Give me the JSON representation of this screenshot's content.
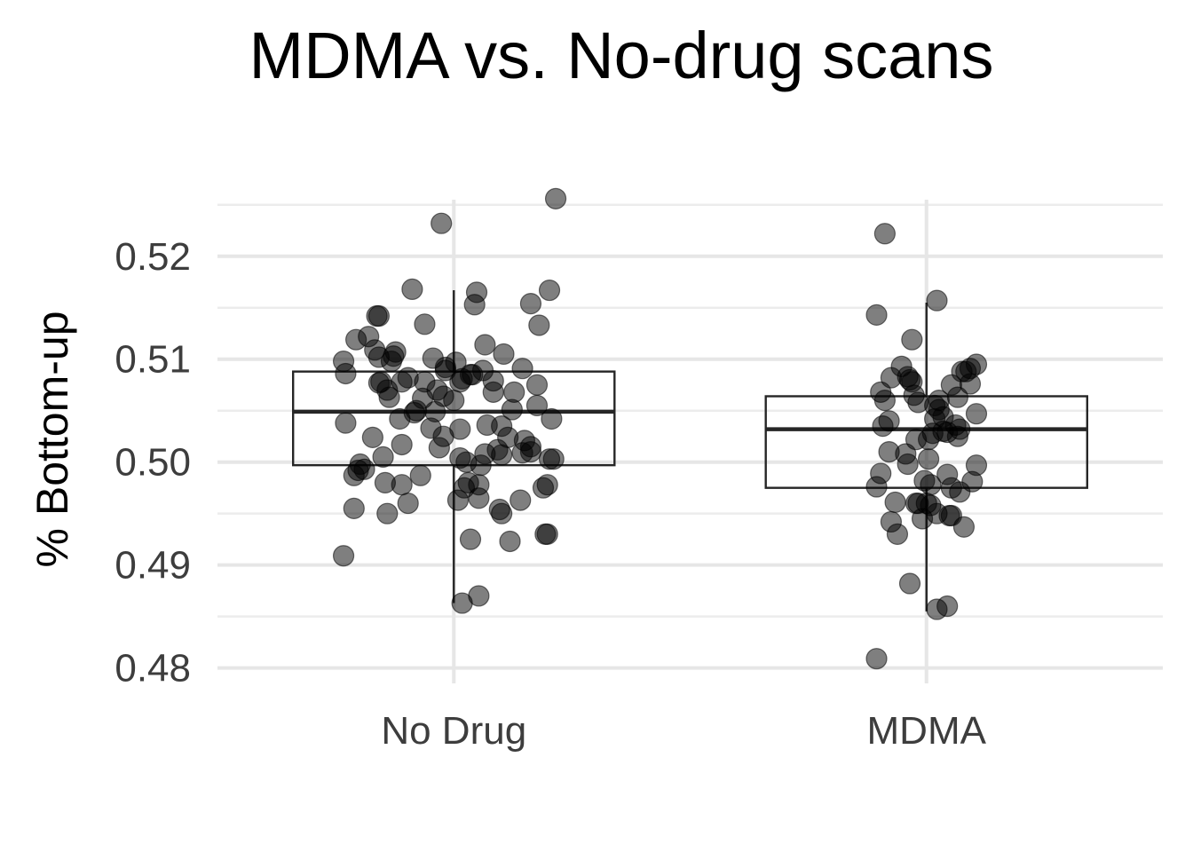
{
  "chart_data": {
    "type": "box",
    "title": "MDMA vs. No-drug scans",
    "xlabel": "",
    "ylabel": "% Bottom-up",
    "categories": [
      "No Drug",
      "MDMA"
    ],
    "ylim": [
      0.4785,
      0.5255
    ],
    "yticks": [
      0.48,
      0.49,
      0.5,
      0.51,
      0.52
    ],
    "ytick_labels": [
      "0.48",
      "0.49",
      "0.50",
      "0.51",
      "0.52"
    ],
    "grid": true,
    "legend": "none",
    "boxes": [
      {
        "name": "No Drug",
        "min": 0.4863,
        "q1": 0.4997,
        "median": 0.5049,
        "q3": 0.5088,
        "max": 0.5167
      },
      {
        "name": "MDMA",
        "min": 0.4855,
        "q1": 0.4975,
        "median": 0.5032,
        "q3": 0.5064,
        "max": 0.5155
      }
    ],
    "points": [
      {
        "group": "No Drug",
        "offsets": [
          0.49,
          -0.06,
          -0.53,
          0.04,
          0.12,
          0.45,
          0.43,
          0.32,
          0.22,
          0.27,
          0.23,
          0.46,
          0.34,
          -0.47,
          -0.37,
          -0.36,
          -0.3,
          -0.1,
          -0.04,
          0.08,
          0.14,
          -0.14,
          -0.35,
          -0.31,
          0.16,
          0.26,
          -0.19,
          -0.52,
          -0.26,
          -0.11,
          0.33,
          0.4,
          -0.05,
          0.01,
          0.03,
          -0.04,
          0.1,
          0.37,
          0.46,
          -0.53,
          -0.38,
          -0.28,
          -0.22,
          -0.41,
          0.15,
          0.24,
          0.41,
          -0.2,
          -0.14,
          -0.36,
          -0.09,
          0.19,
          -0.52,
          -0.15,
          0.09,
          0.28,
          -0.05,
          0.47,
          -0.32,
          -0.43,
          -0.45,
          0.13,
          0.06,
          0.48,
          -0.34,
          -0.25,
          0.03,
          -0.16,
          -0.07,
          0.37,
          0.21,
          0.33,
          0.15,
          -0.39,
          0.04,
          0.29,
          -0.18,
          -0.36,
          -0.08,
          0.02,
          -0.25,
          0.12,
          -0.32,
          0.07,
          0.44,
          0.08,
          0.23,
          -0.48,
          0.12,
          0.05,
          -0.46,
          -0.33,
          0.37,
          0.23,
          0.03,
          0.45,
          -0.22,
          -0.48,
          0.19,
          -0.29,
          0.4,
          -0.25,
          0.11,
          0.0
        ],
        "values": [
          0.5256,
          0.5232,
          0.4909,
          0.4863,
          0.487,
          0.493,
          0.4975,
          0.4963,
          0.4954,
          0.4923,
          0.5007,
          0.5003,
          0.5021,
          0.5119,
          0.5142,
          0.5102,
          0.5098,
          0.5101,
          0.5092,
          0.5085,
          0.5089,
          0.5078,
          0.5078,
          0.5063,
          0.5036,
          0.5024,
          0.5048,
          0.5038,
          0.5042,
          0.5033,
          0.5091,
          0.5055,
          0.5064,
          0.5097,
          0.5078,
          0.5089,
          0.5153,
          0.5154,
          0.5167,
          0.5098,
          0.5109,
          0.5107,
          0.5082,
          0.5122,
          0.5114,
          0.5105,
          0.5133,
          0.5168,
          0.5134,
          0.5142,
          0.5049,
          0.5068,
          0.5086,
          0.5062,
          0.5085,
          0.5051,
          0.5025,
          0.5042,
          0.507,
          0.4993,
          0.4998,
          0.4997,
          0.5,
          0.5003,
          0.5005,
          0.5017,
          0.5004,
          0.4987,
          0.5014,
          0.501,
          0.5012,
          0.5009,
          0.5008,
          0.5024,
          0.5081,
          0.5068,
          0.505,
          0.5077,
          0.507,
          0.4963,
          0.4978,
          0.4978,
          0.495,
          0.498,
          0.493,
          0.4925,
          0.495,
          0.4955,
          0.4965,
          0.4975,
          0.4992,
          0.498,
          0.5015,
          0.5035,
          0.5032,
          0.4978,
          0.496,
          0.4987,
          0.5079,
          0.5103,
          0.5075,
          0.5078,
          0.5165,
          0.506
        ]
      },
      {
        "group": "MDMA",
        "offsets": [
          -0.24,
          -0.2,
          -0.24,
          0.05,
          -0.07,
          0.24,
          0.21,
          -0.24,
          -0.05,
          0.12,
          0.12,
          0.05,
          -0.17,
          -0.22,
          -0.14,
          -0.02,
          0.11,
          0.18,
          0.16,
          0.22,
          0.24,
          0.24,
          0.12,
          -0.09,
          -0.08,
          -0.06,
          -0.07,
          -0.04,
          0.04,
          0.08,
          0.14,
          0.16,
          -0.17,
          0.06,
          0.17,
          0.19,
          -0.12,
          0.04,
          0.01,
          0.03,
          0.08,
          0.06,
          0.15,
          0.1,
          0.01,
          -0.2,
          -0.1,
          -0.01,
          0.02,
          0.0,
          0.1,
          -0.09,
          -0.15,
          -0.18,
          -0.22,
          0.21,
          -0.08,
          -0.04,
          0.05,
          0.15,
          -0.21,
          -0.18,
          -0.05,
          0.02,
          0.1
        ],
        "values": [
          0.4809,
          0.5222,
          0.5143,
          0.5157,
          0.5119,
          0.5095,
          0.5091,
          0.4976,
          0.496,
          0.4975,
          0.4948,
          0.495,
          0.4942,
          0.4989,
          0.493,
          0.4945,
          0.4948,
          0.4937,
          0.4971,
          0.4981,
          0.4997,
          0.5047,
          0.5075,
          0.5083,
          0.508,
          0.5065,
          0.5078,
          0.5058,
          0.5055,
          0.5044,
          0.5036,
          0.5032,
          0.5082,
          0.506,
          0.5088,
          0.5088,
          0.5093,
          0.5042,
          0.5003,
          0.5028,
          0.503,
          0.5051,
          0.5063,
          0.5029,
          0.5022,
          0.506,
          0.5008,
          0.4982,
          0.4958,
          0.496,
          0.4988,
          0.4998,
          0.4961,
          0.504,
          0.5068,
          0.5076,
          0.4882,
          0.496,
          0.4857,
          0.5025,
          0.5035,
          0.501,
          0.5022,
          0.4978,
          0.486
        ]
      }
    ]
  }
}
